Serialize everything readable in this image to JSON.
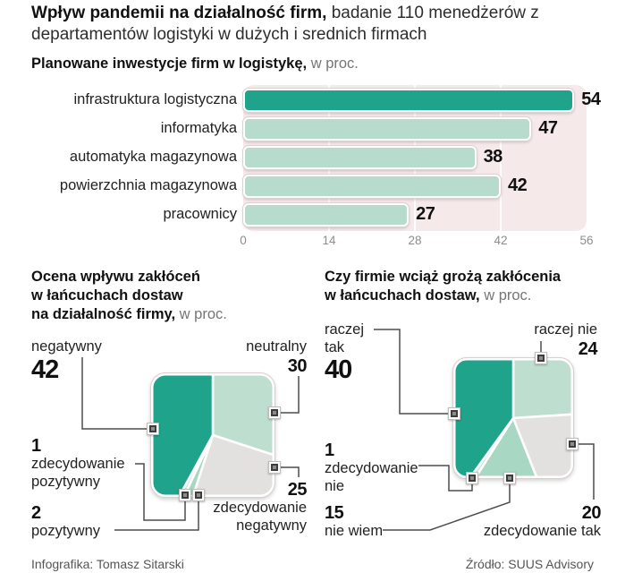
{
  "title": {
    "bold": "Wpływ pandemii na działalność firm,",
    "regular": " badanie 110 menedżerów z departamentów logistyki w dużych i srednich firmach"
  },
  "bar_section": {
    "title_bold": "Planowane inwestycje firm w logistykę,",
    "title_suffix": " w proc.",
    "rows": [
      {
        "label": "infrastruktura logistyczna",
        "value": 54
      },
      {
        "label": "informatyka",
        "value": 47
      },
      {
        "label": "automatyka magazynowa",
        "value": 38
      },
      {
        "label": "powierzchnia magazynowa",
        "value": 42
      },
      {
        "label": "pracownicy",
        "value": 27
      }
    ],
    "axis_ticks": [
      0,
      14,
      28,
      42,
      56
    ],
    "axis_max": 56
  },
  "pie_left": {
    "title_lines": [
      "Ocena wpływu zakłóceń",
      "w łańcuchach dostaw",
      "na działalność firmy,"
    ],
    "title_suffix": " w proc.",
    "callouts": {
      "negatywny": {
        "label": "negatywny",
        "value": "42"
      },
      "neutralny": {
        "label": "neutralny",
        "value": "30"
      },
      "zdec_pozytywny": {
        "value": "1",
        "line1": "zdecydowanie",
        "line2": "pozytywny"
      },
      "pozytywny": {
        "value": "2",
        "label": "pozytywny"
      },
      "zdec_negatywny": {
        "value": "25",
        "line1": "zdecydowanie",
        "line2": "negatywny"
      }
    },
    "slices": [
      {
        "label": "neutralny",
        "value": 30,
        "color": "#bedfd0"
      },
      {
        "label": "zdecydowanie negatywny",
        "value": 25,
        "color": "#e3e0e0"
      },
      {
        "label": "pozytywny",
        "value": 2,
        "color": "#a8d8c3"
      },
      {
        "label": "zdecydowanie pozytywny",
        "value": 1,
        "color": "#cfe8da"
      },
      {
        "label": "negatywny",
        "value": 42,
        "color": "#1fa38a"
      }
    ]
  },
  "pie_right": {
    "title_lines": [
      "Czy firmie wciąż grożą zakłócenia",
      "w łańcuchach dostaw,"
    ],
    "title_suffix": " w proc.",
    "callouts": {
      "raczej_tak": {
        "line1": "raczej",
        "line2": "tak",
        "value": "40"
      },
      "raczej_nie": {
        "label": "raczej nie",
        "value": "24"
      },
      "zdec_nie": {
        "value": "1",
        "line1": "zdecydowanie",
        "line2": "nie"
      },
      "nie_wiem": {
        "value": "15",
        "label": "nie wiem"
      },
      "zdec_tak": {
        "value": "20",
        "label": "zdecydowanie tak"
      }
    },
    "slices": [
      {
        "label": "raczej nie",
        "value": 24,
        "color": "#bedfd0"
      },
      {
        "label": "zdecydowanie tak",
        "value": 20,
        "color": "#e3e0e0"
      },
      {
        "label": "nie wiem",
        "value": 15,
        "color": "#a8d8c3"
      },
      {
        "label": "zdecydowanie nie",
        "value": 1,
        "color": "#cfe8da"
      },
      {
        "label": "raczej tak",
        "value": 40,
        "color": "#1fa38a"
      }
    ]
  },
  "footer": {
    "credit": "Infografika: Tomasz Sitarski",
    "source": "Źródło: SUUS Advisory"
  },
  "colors": {
    "teal": "#1fa38a",
    "mint_light": "#b7dccb",
    "mint_medium": "#a8d8c3",
    "gray_slice": "#e3e0e0",
    "panel_pink": "#f5e9e9",
    "connector": "#4d4d4d"
  },
  "chart_data": [
    {
      "type": "bar",
      "orientation": "horizontal",
      "title": "Planowane inwestycje firm w logistykę, w proc.",
      "categories": [
        "infrastruktura logistyczna",
        "informatyka",
        "automatyka magazynowa",
        "powierzchnia magazynowa",
        "pracownicy"
      ],
      "values": [
        54,
        47,
        38,
        42,
        27
      ],
      "xlabel": "",
      "ylabel": "",
      "xlim": [
        0,
        56
      ],
      "xticks": [
        0,
        14,
        28,
        42,
        56
      ],
      "grid": true
    },
    {
      "type": "pie",
      "shape": "rounded-square",
      "title": "Ocena wpływu zakłóceń w łańcuchach dostaw na działalność firmy, w proc.",
      "labels": [
        "neutralny",
        "zdecydowanie negatywny",
        "pozytywny",
        "zdecydowanie pozytywny",
        "negatywny"
      ],
      "values": [
        30,
        25,
        2,
        1,
        42
      ],
      "start": "12 o'clock, clockwise"
    },
    {
      "type": "pie",
      "shape": "rounded-square",
      "title": "Czy firmie wciąż grożą zakłócenia w łańcuchach dostaw, w proc.",
      "labels": [
        "raczej nie",
        "zdecydowanie tak",
        "nie wiem",
        "zdecydowanie nie",
        "raczej tak"
      ],
      "values": [
        24,
        20,
        15,
        1,
        40
      ],
      "start": "12 o'clock, clockwise"
    }
  ]
}
